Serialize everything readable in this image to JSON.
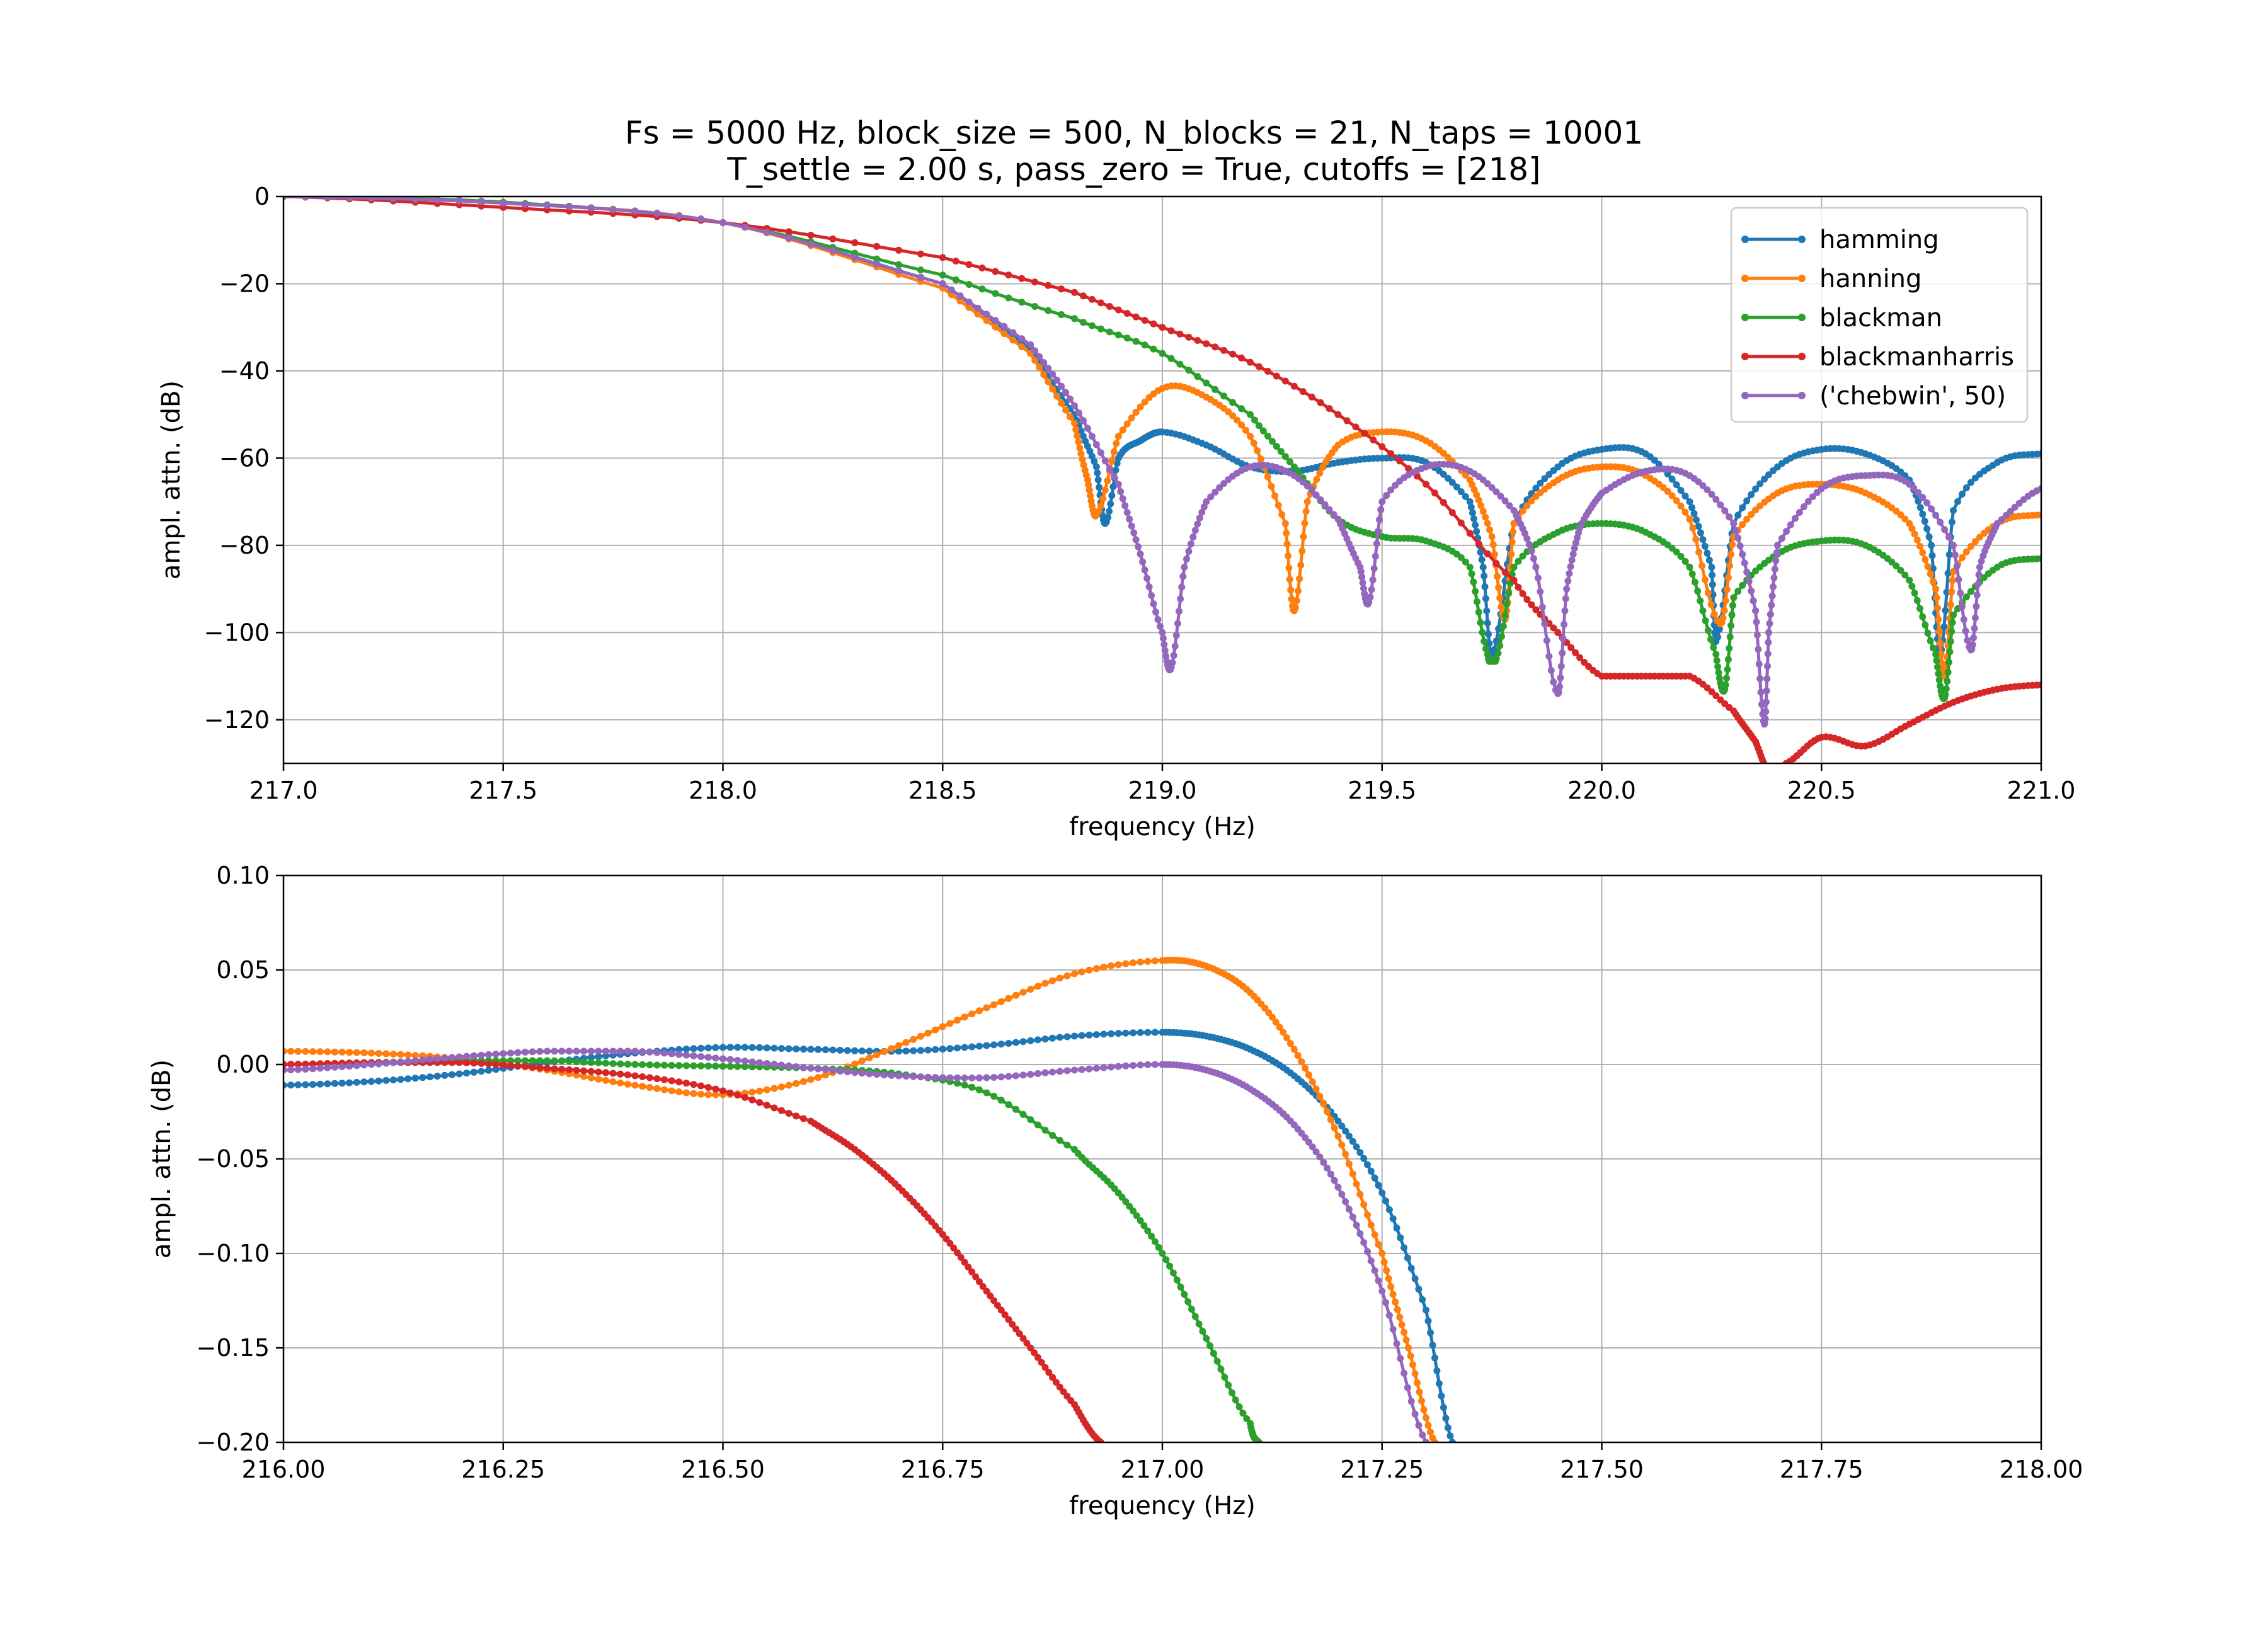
{
  "chart_data": [
    {
      "type": "line",
      "title": [
        "Fs = 5000 Hz, block_size = 500, N_blocks = 21, N_taps = 10001",
        "T_settle = 2.00 s, pass_zero = True, cutoffs = [218]"
      ],
      "xlabel": "frequency (Hz)",
      "ylabel": "ampl. attn. (dB)",
      "xlim": [
        217.0,
        221.0
      ],
      "ylim": [
        -130,
        0
      ],
      "xticks": [
        "217.0",
        "217.5",
        "218.0",
        "218.5",
        "219.0",
        "219.5",
        "220.0",
        "220.5",
        "221.0"
      ],
      "yticks": [
        "0",
        "−20",
        "−40",
        "−60",
        "−80",
        "−100",
        "−120"
      ],
      "grid": true,
      "legend": "top-right",
      "series": [
        {
          "name": "hamming",
          "color": "#1f77b4",
          "x": [
            217.0,
            217.5,
            218.0,
            218.5,
            218.7,
            218.8,
            218.85,
            218.87,
            218.9,
            218.95,
            219.0,
            219.1,
            219.2,
            219.3,
            219.4,
            219.5,
            219.6,
            219.7,
            219.73,
            219.75,
            219.8,
            219.9,
            220.0,
            220.1,
            220.2,
            220.25,
            220.26,
            220.3,
            220.4,
            220.5,
            220.6,
            220.7,
            220.75,
            220.77,
            220.8,
            220.9,
            221.0
          ],
          "y": [
            0,
            -1.5,
            -6,
            -20,
            -35,
            -50,
            -62,
            -75,
            -60,
            -56,
            -54,
            -57,
            -62,
            -63,
            -61,
            -60,
            -61,
            -70,
            -85,
            -105,
            -75,
            -62,
            -58,
            -59,
            -70,
            -85,
            -102,
            -75,
            -62,
            -58,
            -59,
            -65,
            -80,
            -105,
            -72,
            -61,
            -59
          ]
        },
        {
          "name": "hanning",
          "color": "#ff7f0e",
          "x": [
            217.0,
            217.5,
            218.0,
            218.5,
            218.7,
            218.8,
            218.83,
            218.85,
            218.9,
            219.0,
            219.1,
            219.2,
            219.28,
            219.3,
            219.33,
            219.4,
            219.5,
            219.6,
            219.7,
            219.75,
            219.78,
            219.8,
            219.9,
            220.0,
            220.1,
            220.2,
            220.27,
            220.3,
            220.4,
            220.5,
            220.6,
            220.7,
            220.76,
            220.78,
            220.8,
            220.9,
            221.0
          ],
          "y": [
            0,
            -1.5,
            -6,
            -21,
            -36,
            -52,
            -65,
            -73,
            -55,
            -44,
            -46,
            -55,
            -75,
            -95,
            -70,
            -57,
            -54,
            -56,
            -65,
            -78,
            -97,
            -75,
            -65,
            -62,
            -64,
            -74,
            -98,
            -78,
            -68,
            -66,
            -68,
            -75,
            -90,
            -110,
            -86,
            -75,
            -73
          ]
        },
        {
          "name": "blackman",
          "color": "#2ca02c",
          "x": [
            217.0,
            217.5,
            218.0,
            218.5,
            218.8,
            219.0,
            219.2,
            219.3,
            219.4,
            219.5,
            219.6,
            219.7,
            219.74,
            219.76,
            219.8,
            219.9,
            220.0,
            220.1,
            220.2,
            220.26,
            220.28,
            220.3,
            220.4,
            220.5,
            220.6,
            220.7,
            220.76,
            220.78,
            220.8,
            220.9,
            221.0
          ],
          "y": [
            0,
            -1.3,
            -6,
            -18,
            -28,
            -36,
            -50,
            -62,
            -74,
            -78,
            -79,
            -85,
            -105,
            -106,
            -85,
            -77,
            -75,
            -77,
            -85,
            -105,
            -113,
            -92,
            -82,
            -79,
            -80,
            -88,
            -105,
            -115,
            -96,
            -85,
            -83
          ]
        },
        {
          "name": "blackmanharris",
          "color": "#d62728",
          "x": [
            217.0,
            217.5,
            218.0,
            218.5,
            218.8,
            219.0,
            219.2,
            219.4,
            219.6,
            219.8,
            219.9,
            220.0,
            220.1,
            220.2,
            220.3,
            220.35,
            220.38,
            220.42,
            220.5,
            220.6,
            220.7,
            220.8,
            220.9,
            221.0
          ],
          "y": [
            0,
            -2.5,
            -6,
            -14,
            -22,
            -30,
            -38,
            -50,
            -66,
            -88,
            -100,
            -110,
            -110,
            -110,
            -118,
            -125,
            -132,
            -130,
            -124,
            -126,
            -121,
            -116,
            -113,
            -112
          ]
        },
        {
          "name": "('chebwin', 50)",
          "color": "#9467bd",
          "x": [
            217.0,
            217.5,
            218.0,
            218.5,
            218.7,
            218.8,
            218.9,
            218.95,
            219.0,
            219.02,
            219.05,
            219.1,
            219.2,
            219.3,
            219.4,
            219.45,
            219.47,
            219.5,
            219.6,
            219.7,
            219.8,
            219.85,
            219.9,
            219.92,
            219.95,
            220.0,
            220.1,
            220.2,
            220.3,
            220.35,
            220.37,
            220.38,
            220.4,
            220.5,
            220.6,
            220.7,
            220.8,
            220.84,
            220.86,
            220.9,
            221.0
          ],
          "y": [
            0,
            -1.5,
            -6,
            -20,
            -34,
            -48,
            -66,
            -82,
            -100,
            -108,
            -85,
            -70,
            -62,
            -64,
            -74,
            -85,
            -93,
            -70,
            -62,
            -63,
            -72,
            -85,
            -114,
            -90,
            -76,
            -68,
            -63,
            -64,
            -75,
            -95,
            -121,
            -100,
            -80,
            -67,
            -64,
            -66,
            -80,
            -104,
            -85,
            -75,
            -67
          ]
        }
      ]
    },
    {
      "type": "line",
      "xlabel": "frequency (Hz)",
      "ylabel": "ampl. attn. (dB)",
      "xlim": [
        216.0,
        218.0
      ],
      "ylim": [
        -0.2,
        0.1
      ],
      "xticks": [
        "216.00",
        "216.25",
        "216.50",
        "216.75",
        "217.00",
        "217.25",
        "217.50",
        "217.75",
        "218.00"
      ],
      "yticks": [
        "0.10",
        "0.05",
        "0.00",
        "−0.05",
        "−0.10",
        "−0.15",
        "−0.20"
      ],
      "grid": true,
      "series": [
        {
          "name": "hamming",
          "color": "#1f77b4",
          "x": [
            216.0,
            216.1,
            216.2,
            216.3,
            216.4,
            216.5,
            216.6,
            216.7,
            216.8,
            216.9,
            217.0,
            217.05,
            217.1,
            217.15,
            217.2,
            217.25,
            217.3,
            217.33
          ],
          "y": [
            -0.011,
            -0.009,
            -0.005,
            0.001,
            0.006,
            0.009,
            0.008,
            0.007,
            0.01,
            0.015,
            0.017,
            0.015,
            0.008,
            -0.006,
            -0.03,
            -0.068,
            -0.13,
            -0.2
          ]
        },
        {
          "name": "hanning",
          "color": "#ff7f0e",
          "x": [
            216.0,
            216.1,
            216.2,
            216.3,
            216.4,
            216.5,
            216.6,
            216.7,
            216.8,
            216.9,
            217.0,
            217.05,
            217.1,
            217.15,
            217.2,
            217.25,
            217.28,
            217.31
          ],
          "y": [
            0.007,
            0.006,
            0.003,
            -0.003,
            -0.011,
            -0.016,
            -0.008,
            0.01,
            0.03,
            0.048,
            0.055,
            0.052,
            0.038,
            0.008,
            -0.038,
            -0.1,
            -0.15,
            -0.2
          ]
        },
        {
          "name": "blackman",
          "color": "#2ca02c",
          "x": [
            216.0,
            216.1,
            216.2,
            216.3,
            216.4,
            216.5,
            216.6,
            216.7,
            216.8,
            216.9,
            216.95,
            217.0,
            217.05,
            217.1,
            217.11
          ],
          "y": [
            0.0,
            0.001,
            0.002,
            0.002,
            0.0,
            -0.001,
            -0.002,
            -0.005,
            -0.015,
            -0.045,
            -0.068,
            -0.1,
            -0.145,
            -0.19,
            -0.2
          ]
        },
        {
          "name": "blackmanharris",
          "color": "#d62728",
          "x": [
            216.0,
            216.1,
            216.2,
            216.3,
            216.4,
            216.5,
            216.6,
            216.65,
            216.7,
            216.75,
            216.8,
            216.85,
            216.9,
            216.93
          ],
          "y": [
            0.0,
            0.001,
            0.001,
            -0.002,
            -0.006,
            -0.014,
            -0.03,
            -0.045,
            -0.065,
            -0.09,
            -0.12,
            -0.15,
            -0.18,
            -0.2
          ]
        },
        {
          "name": "('chebwin', 50)",
          "color": "#9467bd",
          "x": [
            216.0,
            216.1,
            216.2,
            216.3,
            216.4,
            216.5,
            216.6,
            216.7,
            216.8,
            216.9,
            217.0,
            217.05,
            217.1,
            217.15,
            217.2,
            217.25,
            217.3
          ],
          "y": [
            -0.003,
            0.0,
            0.004,
            0.007,
            0.007,
            0.003,
            -0.002,
            -0.006,
            -0.007,
            -0.003,
            0.0,
            -0.003,
            -0.013,
            -0.032,
            -0.065,
            -0.12,
            -0.2
          ]
        }
      ]
    }
  ]
}
